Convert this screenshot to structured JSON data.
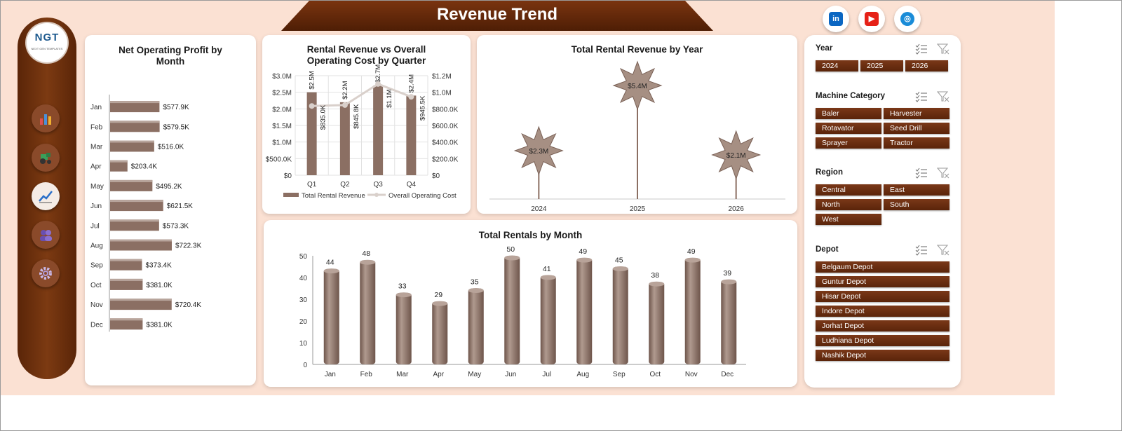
{
  "header": {
    "title": "Revenue Trend"
  },
  "social": [
    {
      "icon": "linkedin-icon",
      "label": "in",
      "color": "#0a66c2"
    },
    {
      "icon": "youtube-icon",
      "label": "▶",
      "color": "#e62117"
    },
    {
      "icon": "globe-icon",
      "label": "◎",
      "color": "#1a8cd8"
    }
  ],
  "sidebar": {
    "logo_text": "NGT",
    "logo_subtext": "NEXT GEN TEMPLATES",
    "nav": [
      {
        "icon": "bar-chart-icon",
        "active": false
      },
      {
        "icon": "tractor-icon",
        "active": false
      },
      {
        "icon": "trend-line-icon",
        "active": true
      },
      {
        "icon": "users-icon",
        "active": false
      },
      {
        "icon": "gear-icon",
        "active": false
      }
    ]
  },
  "colors": {
    "bar": "#8b6f63",
    "bar_light": "#a68f83",
    "line": "#d9d0cb",
    "accent": "#6b2a0a"
  },
  "chart_data": [
    {
      "type": "bar",
      "orientation": "horizontal",
      "title": "Net Operating Profit by Month",
      "categories": [
        "Jan",
        "Feb",
        "Mar",
        "Apr",
        "May",
        "Jun",
        "Jul",
        "Aug",
        "Sep",
        "Oct",
        "Nov",
        "Dec"
      ],
      "values": [
        577.9,
        579.5,
        516.0,
        203.4,
        495.2,
        621.5,
        573.3,
        722.3,
        373.4,
        381.0,
        720.4,
        381.0
      ],
      "labels": [
        "$577.9K",
        "$579.5K",
        "$516.0K",
        "$203.4K",
        "$495.2K",
        "$621.5K",
        "$573.3K",
        "$722.3K",
        "$373.4K",
        "$381.0K",
        "$720.4K",
        "$381.0K"
      ],
      "unit": "K"
    },
    {
      "type": "bar",
      "title": "Rental Revenue vs Overall Operating Cost by Quarter",
      "categories": [
        "Q1",
        "Q2",
        "Q3",
        "Q4"
      ],
      "series": [
        {
          "name": "Total Rental Revenue",
          "type": "bar",
          "axis": "left",
          "values": [
            2.5,
            2.2,
            2.7,
            2.4
          ],
          "labels": [
            "$2.5M",
            "$2.2M",
            "$2.7M",
            "$2.4M"
          ]
        },
        {
          "name": "Overall Operating Cost",
          "type": "line",
          "axis": "right",
          "values": [
            835.0,
            845.8,
            1100.0,
            945.5
          ],
          "labels": [
            "$835.0K",
            "$845.8K",
            "$1.1M",
            "$945.5K"
          ]
        }
      ],
      "left_ticks": [
        "$0",
        "$500.0K",
        "$1.0M",
        "$1.5M",
        "$2.0M",
        "$2.5M",
        "$3.0M"
      ],
      "right_ticks": [
        "$0",
        "$200.0K",
        "$400.0K",
        "$600.0K",
        "$800.0K",
        "$1.0M",
        "$1.2M"
      ],
      "ylim_left": [
        0,
        3.0
      ],
      "ylim_right": [
        0,
        1200
      ]
    },
    {
      "type": "bar",
      "title": "Total Rental Revenue by Year",
      "categories": [
        "2024",
        "2025",
        "2026"
      ],
      "values": [
        2.3,
        5.4,
        2.1
      ],
      "labels": [
        "$2.3M",
        "$5.4M",
        "$2.1M"
      ],
      "ylim": [
        0,
        5.8
      ]
    },
    {
      "type": "bar",
      "title": "Total Rentals by Month",
      "categories": [
        "Jan",
        "Feb",
        "Mar",
        "Apr",
        "May",
        "Jun",
        "Jul",
        "Aug",
        "Sep",
        "Oct",
        "Nov",
        "Dec"
      ],
      "values": [
        44,
        48,
        33,
        29,
        35,
        50,
        41,
        49,
        45,
        38,
        49,
        39
      ],
      "y_ticks": [
        "0",
        "10",
        "20",
        "30",
        "40",
        "50"
      ],
      "ylim": [
        0,
        50
      ]
    }
  ],
  "slicers": [
    {
      "title": "Year",
      "items": [
        "2024",
        "2025",
        "2026"
      ]
    },
    {
      "title": "Machine Category",
      "items": [
        "Baler",
        "Harvester",
        "Rotavator",
        "Seed Drill",
        "Sprayer",
        "Tractor"
      ]
    },
    {
      "title": "Region",
      "items": [
        "Central",
        "East",
        "North",
        "South",
        "West"
      ]
    },
    {
      "title": "Depot",
      "items": [
        "Belgaum Depot",
        "Guntur Depot",
        "Hisar Depot",
        "Indore Depot",
        "Jorhat Depot",
        "Ludhiana Depot",
        "Nashik Depot"
      ]
    }
  ]
}
